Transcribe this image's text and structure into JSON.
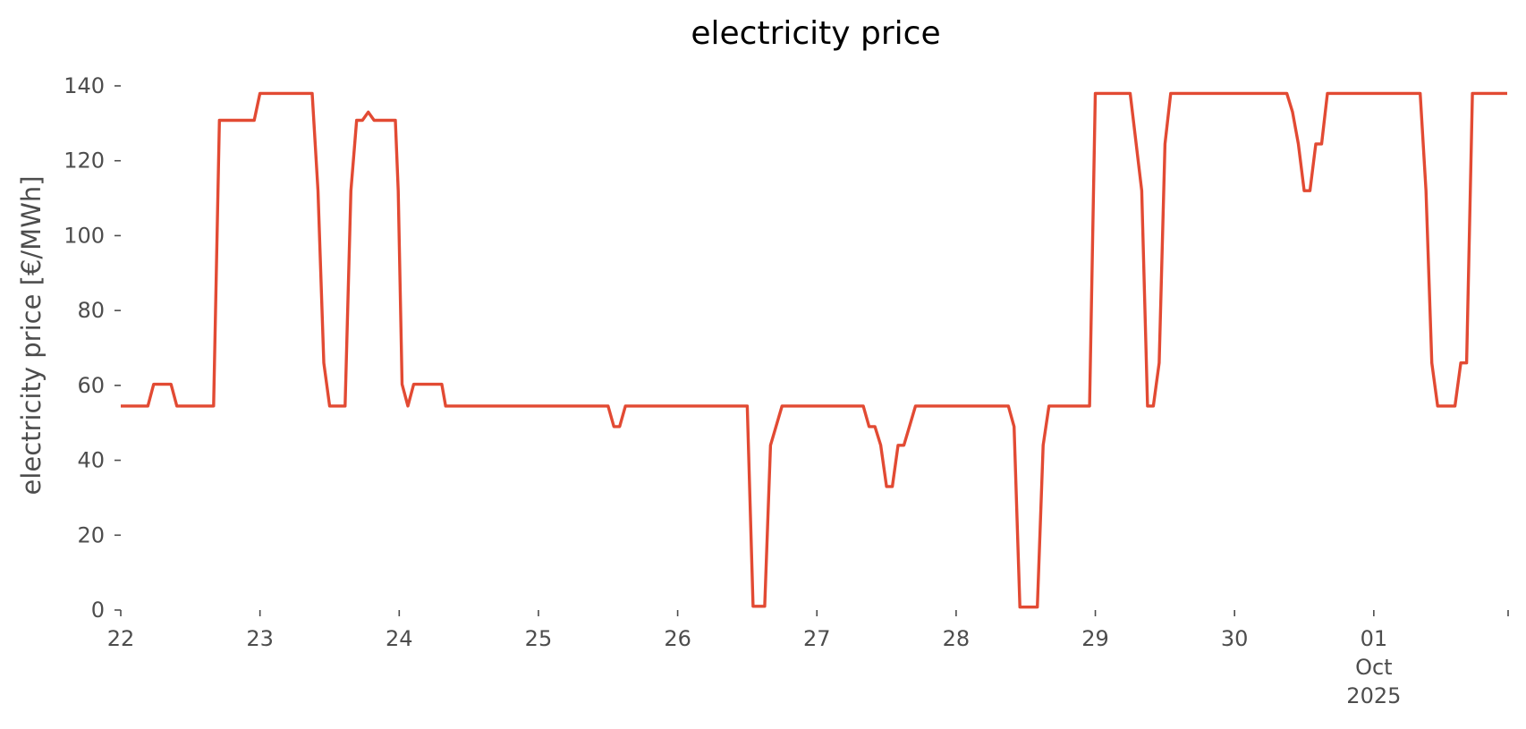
{
  "chart_data": {
    "type": "line",
    "title": "electricity price",
    "xlabel": "",
    "ylabel": "electricity price [€/MWh]",
    "ylim": [
      0,
      140
    ],
    "y_ticks": [
      0,
      20,
      40,
      60,
      80,
      100,
      120,
      140
    ],
    "x_ticks": [
      {
        "at": "2025-09-22T00:00",
        "lines": [
          "22"
        ]
      },
      {
        "at": "2025-09-23T00:00",
        "lines": [
          "23"
        ]
      },
      {
        "at": "2025-09-24T00:00",
        "lines": [
          "24"
        ]
      },
      {
        "at": "2025-09-25T00:00",
        "lines": [
          "25"
        ]
      },
      {
        "at": "2025-09-26T00:00",
        "lines": [
          "26"
        ]
      },
      {
        "at": "2025-09-27T00:00",
        "lines": [
          "27"
        ]
      },
      {
        "at": "2025-09-28T00:00",
        "lines": [
          "28"
        ]
      },
      {
        "at": "2025-09-29T00:00",
        "lines": [
          "29"
        ]
      },
      {
        "at": "2025-09-30T00:00",
        "lines": [
          "30"
        ]
      },
      {
        "at": "2025-10-01T00:00",
        "lines": [
          "01",
          "Oct",
          "2025"
        ]
      },
      {
        "at": "2025-10-02T00:00",
        "lines": []
      }
    ],
    "xlim": [
      "2025-09-22T00:00",
      "2025-10-01T23:00"
    ],
    "grid": false,
    "legend": "none",
    "line_color": "#e24a33",
    "series": [
      {
        "x": [
          "2025-09-22T00:00",
          "2025-09-22T04:40",
          "2025-09-22T05:40",
          "2025-09-22T08:40",
          "2025-09-22T09:40",
          "2025-09-22T16:00",
          "2025-09-22T17:00",
          "2025-09-22T23:00",
          "2025-09-23T00:00",
          "2025-09-23T09:00",
          "2025-09-23T10:00",
          "2025-09-23T11:00",
          "2025-09-23T12:00",
          "2025-09-23T14:40",
          "2025-09-23T15:40",
          "2025-09-23T16:40",
          "2025-09-23T17:40",
          "2025-09-23T18:40",
          "2025-09-23T19:40",
          "2025-09-23T20:40",
          "2025-09-23T23:20",
          "2025-09-23T23:50",
          "2025-09-24T00:30",
          "2025-09-24T01:30",
          "2025-09-24T02:30",
          "2025-09-24T07:20",
          "2025-09-24T08:00",
          "2025-09-25T12:00",
          "2025-09-25T13:00",
          "2025-09-25T14:00",
          "2025-09-25T15:00",
          "2025-09-26T12:00",
          "2025-09-26T13:00",
          "2025-09-26T15:00",
          "2025-09-26T16:00",
          "2025-09-26T18:00",
          "2025-09-27T08:00",
          "2025-09-27T09:00",
          "2025-09-27T10:00",
          "2025-09-27T11:00",
          "2025-09-27T12:00",
          "2025-09-27T13:00",
          "2025-09-27T14:00",
          "2025-09-27T15:00",
          "2025-09-27T17:00",
          "2025-09-28T09:00",
          "2025-09-28T10:00",
          "2025-09-28T11:00",
          "2025-09-28T14:00",
          "2025-09-28T15:00",
          "2025-09-28T16:00",
          "2025-09-28T23:00",
          "2025-09-29T00:00",
          "2025-09-29T06:00",
          "2025-09-29T08:00",
          "2025-09-29T09:00",
          "2025-09-29T10:00",
          "2025-09-29T11:00",
          "2025-09-29T12:00",
          "2025-09-29T13:00",
          "2025-09-29T14:00",
          "2025-09-29T15:00",
          "2025-09-30T09:00",
          "2025-09-30T10:00",
          "2025-09-30T11:00",
          "2025-09-30T12:00",
          "2025-09-30T13:00",
          "2025-09-30T14:00",
          "2025-09-30T15:00",
          "2025-09-30T16:00",
          "2025-10-01T08:00",
          "2025-10-01T09:00",
          "2025-10-01T10:00",
          "2025-10-01T11:00",
          "2025-10-01T14:00",
          "2025-10-01T15:00",
          "2025-10-01T16:00",
          "2025-10-01T17:00",
          "2025-10-01T23:00"
        ],
        "y": [
          54.5,
          54.5,
          60.3,
          60.3,
          54.5,
          54.5,
          130.8,
          130.8,
          138.0,
          138.0,
          112.0,
          66.0,
          54.5,
          54.5,
          112.0,
          130.8,
          130.8,
          133.0,
          130.8,
          130.8,
          130.8,
          112.0,
          60.3,
          54.5,
          60.3,
          60.3,
          54.5,
          54.5,
          49.0,
          49.0,
          54.5,
          54.5,
          1.0,
          1.0,
          44.0,
          54.5,
          54.5,
          49.0,
          49.0,
          44.0,
          33.0,
          33.0,
          44.0,
          44.0,
          54.5,
          54.5,
          49.0,
          0.8,
          0.8,
          44.0,
          54.5,
          54.5,
          138.0,
          138.0,
          112.0,
          54.5,
          54.5,
          66.0,
          124.5,
          138.0,
          138.0,
          138.0,
          138.0,
          133.0,
          124.5,
          112.0,
          112.0,
          124.5,
          124.5,
          138.0,
          138.0,
          112.0,
          66.0,
          54.5,
          54.5,
          66.0,
          66.0,
          138.0,
          138.0
        ]
      }
    ]
  }
}
